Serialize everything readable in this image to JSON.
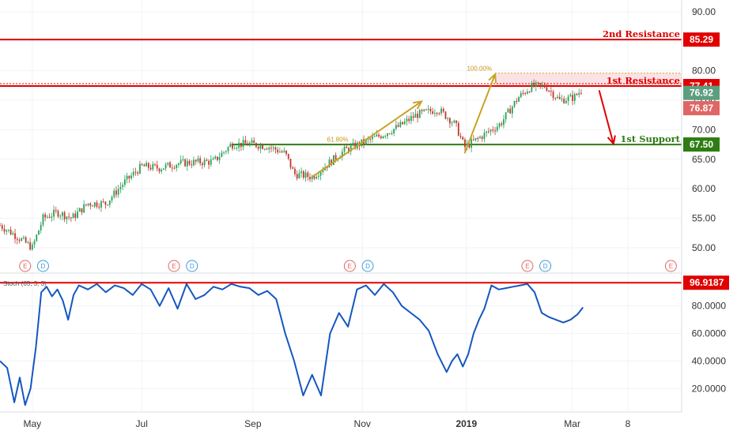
{
  "chart_data": [
    {
      "type": "candlestick",
      "title": "",
      "ylim": [
        46.5,
        92.0
      ],
      "y_ticks": [
        "90.00",
        "85.00",
        "80.00",
        "75.00",
        "70.00",
        "65.00",
        "60.00",
        "55.00",
        "50.00"
      ],
      "y_tick_values": [
        90,
        85,
        80,
        75,
        70,
        65,
        60,
        55,
        50
      ],
      "x_ticks": [
        "May",
        "Jul",
        "Sep",
        "Nov",
        "2019",
        "Mar",
        "8"
      ],
      "x_tick_days": [
        4,
        65,
        127,
        188,
        246,
        305,
        336
      ],
      "x_range_days": [
        -14,
        366
      ],
      "series": [
        {
          "name": "",
          "x_days": [
            -14,
            -5,
            4,
            10,
            18,
            26,
            35,
            45,
            55,
            65,
            75,
            85,
            95,
            105,
            115,
            125,
            135,
            145,
            150,
            160,
            170,
            178,
            188,
            198,
            208,
            218,
            230,
            236,
            240,
            245,
            255,
            265,
            275,
            282,
            290,
            298,
            306,
            311
          ],
          "close": [
            53.8,
            52.0,
            50.0,
            55.0,
            56.0,
            55.0,
            57.5,
            57.5,
            61.0,
            63.8,
            63.5,
            64.3,
            64.5,
            64.6,
            67.5,
            67.6,
            67.2,
            66.0,
            62.5,
            62.0,
            64.5,
            66.5,
            67.8,
            69.0,
            70.5,
            72.5,
            73.5,
            72.0,
            70.8,
            67.0,
            69.0,
            71.0,
            75.5,
            77.3,
            77.4,
            75.0,
            75.5,
            77.0
          ]
        }
      ],
      "levels": [
        {
          "name": "2nd Resistance",
          "value": 85.29,
          "label": "85.29",
          "color": "#e00000"
        },
        {
          "name": "1st Resistance",
          "value": 77.41,
          "label": "77.41",
          "color": "#e00000"
        },
        {
          "name": "1st Support",
          "value": 67.5,
          "label": "67.50",
          "color": "#2e7d14"
        }
      ],
      "price_tags": [
        {
          "label": "76.92",
          "value": 76.92,
          "color": "#5d9e7f"
        },
        {
          "label": "76.87",
          "value": 76.87,
          "color": "#e06666"
        }
      ],
      "fib": [
        {
          "label": "100.00%",
          "value": 79.6
        },
        {
          "label": "61.80%",
          "value": 67.6
        }
      ],
      "arrows_up": [
        {
          "from": [
            160,
            62.0
          ],
          "to": [
            221,
            74.8
          ]
        },
        {
          "from": [
            245,
            66.0
          ],
          "to": [
            262,
            79.4
          ]
        }
      ],
      "arrow_down": {
        "from": [
          320,
          76.7
        ],
        "to": [
          328,
          67.6
        ]
      },
      "event_markers": [
        {
          "letter": "E",
          "day": 0
        },
        {
          "letter": "D",
          "day": 10
        },
        {
          "letter": "E",
          "day": 83
        },
        {
          "letter": "D",
          "day": 93
        },
        {
          "letter": "E",
          "day": 181
        },
        {
          "letter": "D",
          "day": 191
        },
        {
          "letter": "E",
          "day": 280
        },
        {
          "letter": "D",
          "day": 290
        },
        {
          "letter": "E",
          "day": 360
        }
      ]
    },
    {
      "type": "line",
      "title": "Stoch (65, 3, 3)",
      "ylim": [
        3,
        100.5
      ],
      "y_ticks": [
        "80.0000",
        "60.0000",
        "40.0000",
        "20.0000"
      ],
      "y_tick_values": [
        80,
        60,
        40,
        20
      ],
      "level": {
        "value": 96.9187,
        "label": "96.9187",
        "color": "#e00000"
      },
      "series": [
        {
          "name": "",
          "x_days": [
            -14,
            -10,
            -6,
            -3,
            0,
            3,
            6,
            9,
            12,
            15,
            18,
            21,
            24,
            27,
            30,
            35,
            40,
            45,
            50,
            55,
            60,
            65,
            70,
            75,
            80,
            85,
            90,
            95,
            100,
            105,
            110,
            115,
            120,
            125,
            130,
            135,
            140,
            145,
            150,
            155,
            160,
            165,
            170,
            175,
            180,
            185,
            190,
            195,
            200,
            205,
            210,
            215,
            220,
            225,
            230,
            235,
            238,
            241,
            244,
            247,
            250,
            253,
            256,
            260,
            264,
            268,
            272,
            276,
            280,
            284,
            288,
            292,
            296,
            300,
            304,
            308,
            311
          ],
          "values": [
            40,
            35,
            10,
            28,
            8,
            20,
            50,
            90,
            94,
            87,
            92,
            84,
            70,
            88,
            95,
            92,
            96,
            90,
            95,
            93,
            88,
            96,
            92,
            80,
            93,
            78,
            96,
            85,
            88,
            94,
            92,
            96,
            94,
            93,
            88,
            91,
            85,
            60,
            40,
            15,
            30,
            15,
            60,
            75,
            65,
            92,
            95,
            88,
            96,
            90,
            80,
            75,
            70,
            62,
            45,
            32,
            40,
            45,
            36,
            45,
            60,
            70,
            78,
            95,
            92,
            93,
            94,
            95,
            96,
            90,
            75,
            72,
            70,
            68,
            70,
            74,
            79
          ]
        }
      ]
    }
  ]
}
